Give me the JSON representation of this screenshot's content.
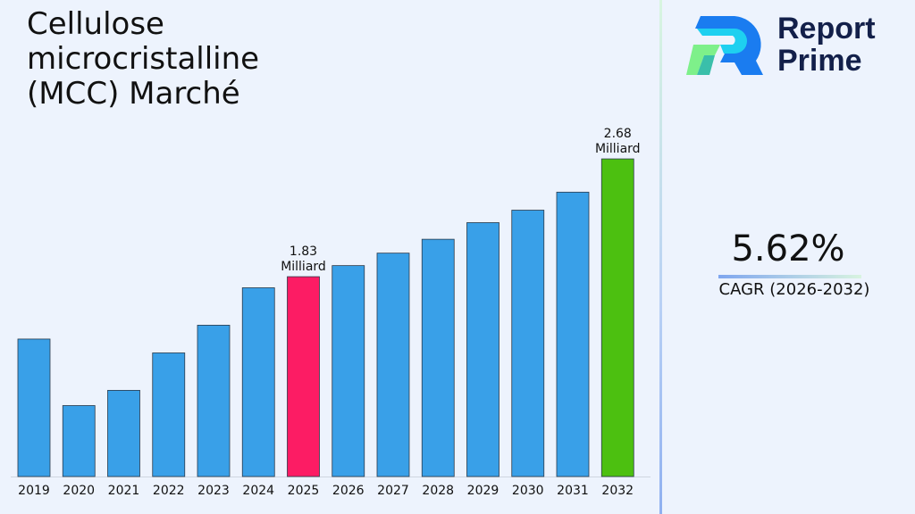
{
  "chart_data": {
    "type": "bar",
    "title": "Cellulose microcristalline (MCC) Marché",
    "categories": [
      "2019",
      "2020",
      "2021",
      "2022",
      "2023",
      "2024",
      "2025",
      "2026",
      "2027",
      "2028",
      "2029",
      "2030",
      "2031",
      "2032"
    ],
    "values": [
      1.38,
      0.9,
      1.01,
      1.28,
      1.48,
      1.75,
      1.83,
      1.91,
      2.0,
      2.1,
      2.22,
      2.31,
      2.44,
      2.68
    ],
    "data_labels": {
      "2025": "1.83 Milliard",
      "2032": "2.68 Milliard"
    },
    "highlight_colors": {
      "2025": "#fc1c64",
      "2032": "#4cc010"
    },
    "bar_color": "#39a0e8",
    "grid": false
  },
  "brand": {
    "line1": "Report",
    "line2": "Prime"
  },
  "cagr": {
    "value": "5.62%",
    "label": "CAGR (2026-2032)"
  }
}
